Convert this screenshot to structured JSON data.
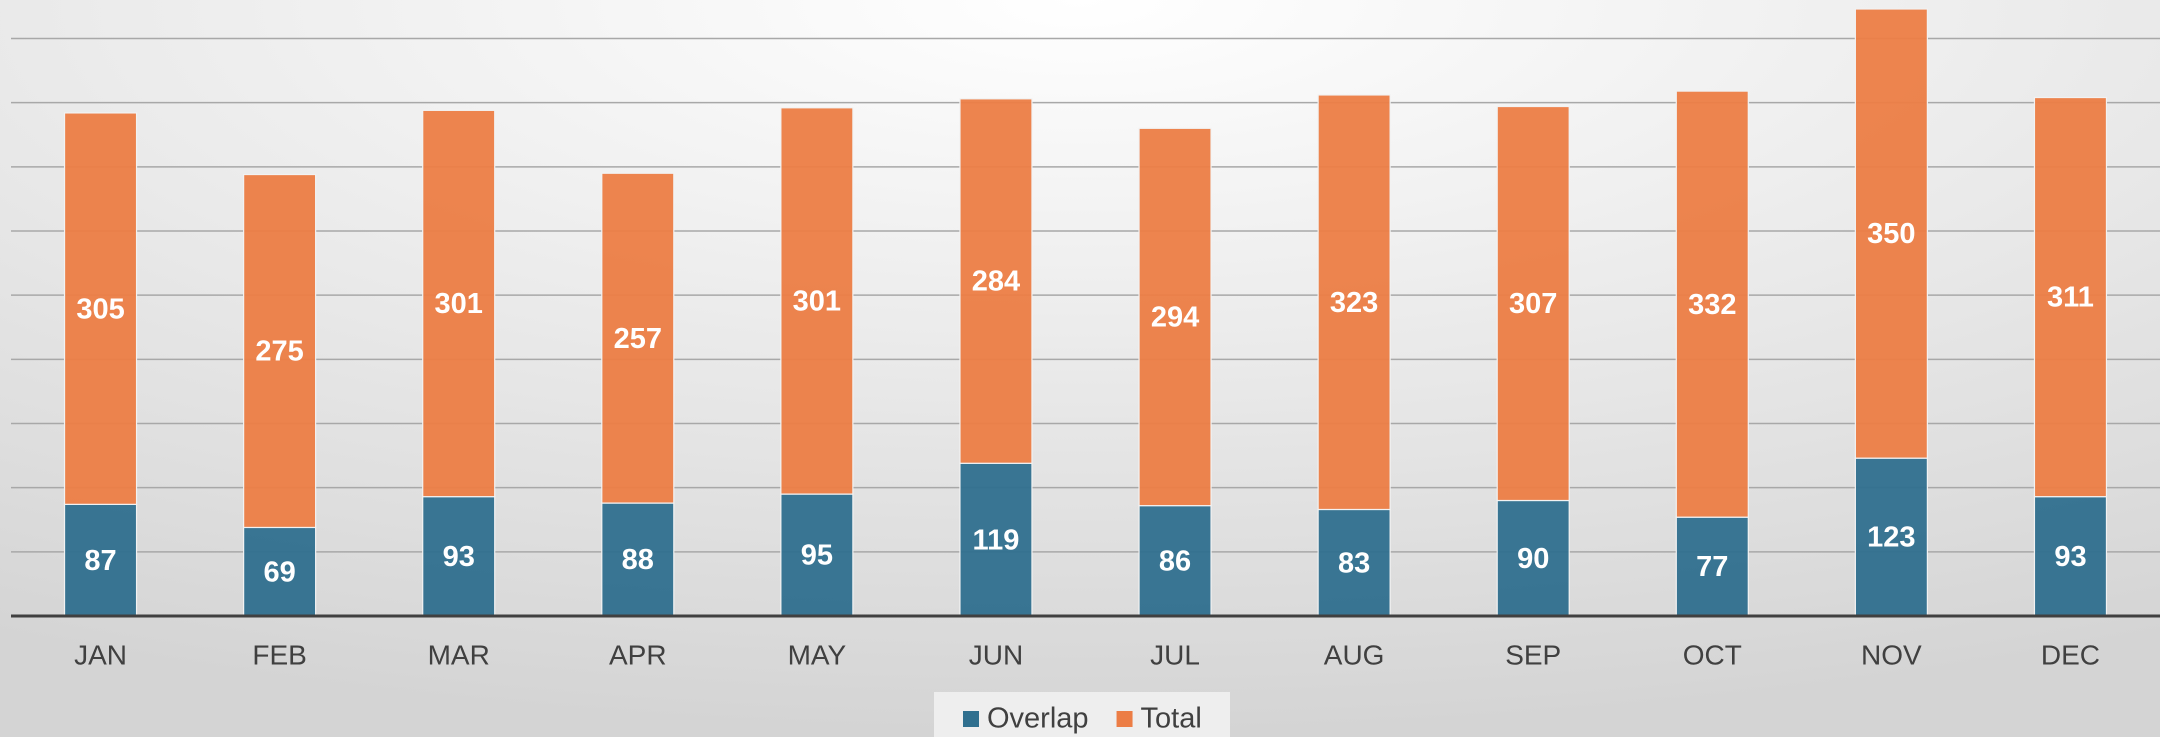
{
  "chart_data": {
    "type": "stacked_bar",
    "categories": [
      "JAN",
      "FEB",
      "MAR",
      "APR",
      "MAY",
      "JUN",
      "JUL",
      "AUG",
      "SEP",
      "OCT",
      "NOV",
      "DEC"
    ],
    "series": [
      {
        "name": "Overlap",
        "color": "#2f6f8e",
        "values": [
          87,
          69,
          93,
          88,
          95,
          119,
          86,
          83,
          90,
          77,
          123,
          93
        ]
      },
      {
        "name": "Total",
        "color": "#ec7d45",
        "values": [
          305,
          275,
          301,
          257,
          301,
          284,
          294,
          323,
          307,
          332,
          350,
          311
        ]
      }
    ],
    "ylim": [
      0,
      480
    ],
    "yticks": [
      0,
      50,
      100,
      150,
      200,
      250,
      300,
      350,
      400,
      450
    ],
    "grid": true,
    "legend": "bottom"
  }
}
